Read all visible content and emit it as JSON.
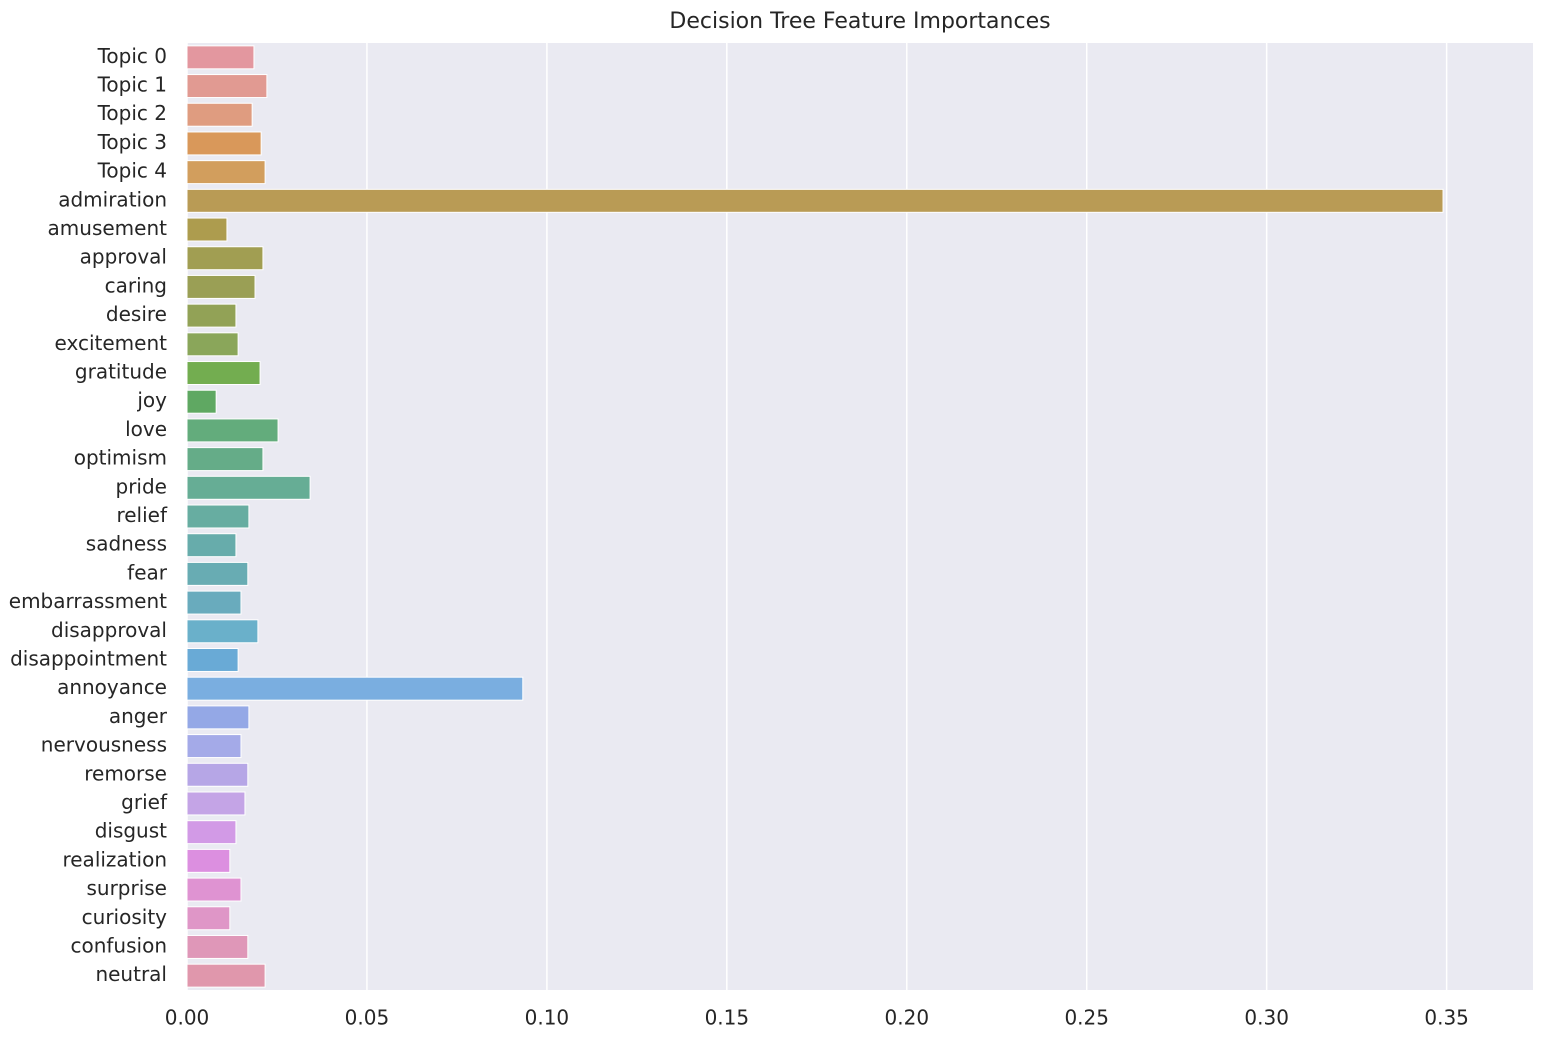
{
  "chart_data": {
    "type": "barh",
    "title": "Decision Tree Feature Importances",
    "categories": [
      "Topic 0",
      "Topic 1",
      "Topic 2",
      "Topic 3",
      "Topic 4",
      "admiration",
      "amusement",
      "approval",
      "caring",
      "desire",
      "excitement",
      "gratitude",
      "joy",
      "love",
      "optimism",
      "pride",
      "relief",
      "sadness",
      "fear",
      "embarrassment",
      "disapproval",
      "disappointment",
      "annoyance",
      "anger",
      "nervousness",
      "remorse",
      "grief",
      "disgust",
      "realization",
      "surprise",
      "curiosity",
      "confusion",
      "neutral"
    ],
    "values": [
      0.0186,
      0.0222,
      0.0181,
      0.0206,
      0.0217,
      0.349,
      0.0111,
      0.0211,
      0.0189,
      0.0136,
      0.0142,
      0.0203,
      0.0081,
      0.0253,
      0.0211,
      0.0342,
      0.0172,
      0.0136,
      0.0169,
      0.015,
      0.0197,
      0.0142,
      0.0933,
      0.0172,
      0.015,
      0.0169,
      0.0161,
      0.0136,
      0.0119,
      0.015,
      0.0119,
      0.0169,
      0.0217
    ],
    "colors": [
      "#e3979f",
      "#e19a92",
      "#df9c80",
      "#d9985a",
      "#d29e5d",
      "#b99b55",
      "#ad9c4e",
      "#a19e52",
      "#9a9f55",
      "#92a256",
      "#8aa65a",
      "#73ad50",
      "#5fa862",
      "#63ac7c",
      "#65ac88",
      "#66ad95",
      "#67ada1",
      "#67acab",
      "#68acb3",
      "#69abbd",
      "#6ab0ca",
      "#69aad6",
      "#7aaee0",
      "#94a8e6",
      "#a4aae8",
      "#b6a6e6",
      "#c4a4e6",
      "#d29ae6",
      "#dc8fe0",
      "#df93d2",
      "#df96c7",
      "#df97b8",
      "#e097ac"
    ],
    "xlim": [
      0,
      0.374
    ],
    "xticks": [
      {
        "value": 0,
        "label": "0.00"
      },
      {
        "value": 0.05,
        "label": "0.05"
      },
      {
        "value": 0.1,
        "label": "0.10"
      },
      {
        "value": 0.15,
        "label": "0.15"
      },
      {
        "value": 0.2,
        "label": "0.20"
      },
      {
        "value": 0.25,
        "label": "0.25"
      },
      {
        "value": 0.3,
        "label": "0.30"
      },
      {
        "value": 0.35,
        "label": "0.35"
      }
    ],
    "grid": true
  }
}
